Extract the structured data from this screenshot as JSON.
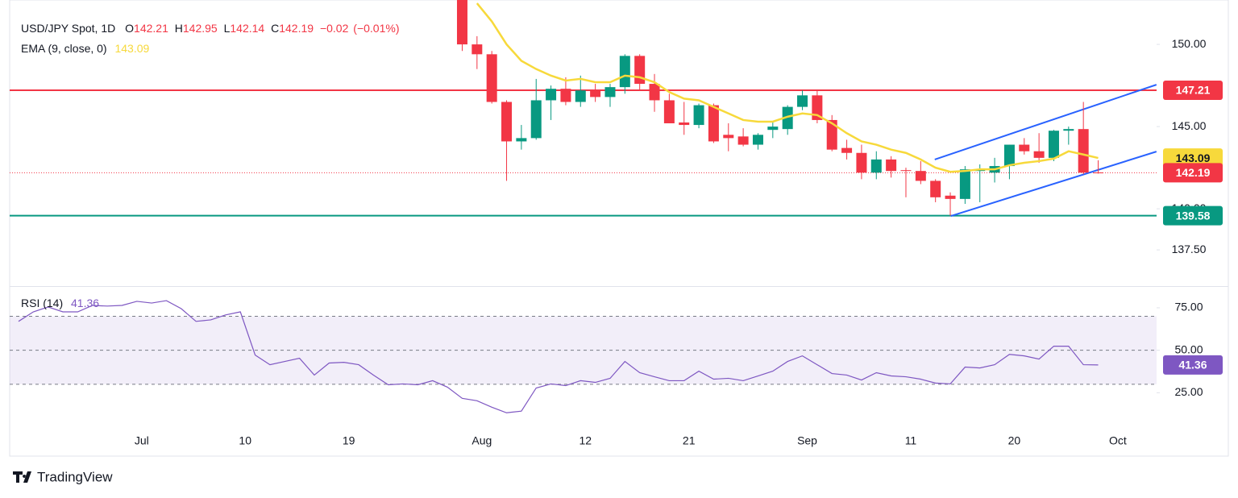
{
  "chart_data": {
    "type": "candlestick",
    "title": "USD/JPY Spot, 1D",
    "ohlc_keys": [
      "O",
      "H",
      "L",
      "C"
    ],
    "change": {
      "value": -0.02,
      "label": "−0.02"
    },
    "change_percent": {
      "value": -0.01,
      "label": "(−0.01%)"
    },
    "categories": [
      null,
      null,
      null,
      null,
      null,
      null,
      null,
      null,
      "Jul",
      null,
      null,
      null,
      null,
      null,
      null,
      "10",
      null,
      null,
      null,
      null,
      null,
      null,
      "19",
      null,
      null,
      null,
      null,
      null,
      null,
      null,
      null,
      "Aug",
      null,
      null,
      null,
      null,
      null,
      null,
      "12",
      null,
      null,
      null,
      null,
      null,
      null,
      "21",
      null,
      null,
      null,
      null,
      null,
      null,
      null,
      "Sep",
      null,
      null,
      null,
      null,
      null,
      null,
      "11",
      null,
      null,
      null,
      null,
      null,
      null,
      "20",
      null,
      null,
      null,
      null,
      null,
      null,
      "Oct"
    ],
    "open": [
      null,
      null,
      null,
      null,
      null,
      null,
      null,
      null,
      null,
      null,
      null,
      null,
      null,
      null,
      null,
      null,
      null,
      null,
      null,
      null,
      null,
      null,
      null,
      null,
      null,
      null,
      null,
      null,
      null,
      null,
      152.9,
      150.0,
      149.4,
      146.5,
      144.1,
      144.3,
      146.6,
      147.3,
      146.5,
      147.2,
      146.8,
      147.4,
      149.3,
      147.6,
      146.6,
      145.25,
      145.1,
      146.3,
      144.5,
      144.4,
      143.9,
      144.8,
      144.85,
      146.2,
      146.9,
      145.4,
      143.7,
      143.4,
      142.2,
      143.0,
      142.35,
      142.3,
      141.7,
      140.8,
      140.6,
      142.3,
      142.2,
      142.6,
      143.9,
      143.5,
      143.1,
      144.75,
      144.85,
      142.21,
      null
    ],
    "high": [
      null,
      null,
      null,
      null,
      null,
      null,
      null,
      null,
      null,
      null,
      null,
      null,
      null,
      null,
      null,
      null,
      null,
      null,
      null,
      null,
      null,
      null,
      null,
      null,
      null,
      null,
      null,
      null,
      null,
      null,
      153.1,
      150.5,
      149.6,
      146.6,
      145.1,
      147.9,
      147.5,
      148.0,
      148.1,
      147.6,
      147.6,
      149.4,
      149.4,
      148.2,
      147.0,
      146.5,
      146.4,
      146.4,
      145.2,
      144.9,
      144.6,
      145.3,
      146.3,
      147.2,
      147.2,
      145.7,
      144.2,
      143.9,
      143.5,
      143.2,
      142.5,
      142.9,
      141.8,
      141.0,
      142.6,
      142.7,
      143.1,
      143.9,
      144.3,
      144.6,
      144.8,
      145.0,
      146.5,
      142.95,
      null
    ],
    "low": [
      null,
      null,
      null,
      null,
      null,
      null,
      null,
      null,
      null,
      null,
      null,
      null,
      null,
      null,
      null,
      null,
      null,
      null,
      null,
      null,
      null,
      null,
      null,
      null,
      null,
      null,
      null,
      null,
      null,
      null,
      149.6,
      148.5,
      146.4,
      141.7,
      143.6,
      144.2,
      145.4,
      146.3,
      146.2,
      146.5,
      146.2,
      147.0,
      147.2,
      145.9,
      145.2,
      144.5,
      144.9,
      144.0,
      143.5,
      143.8,
      143.6,
      144.3,
      144.5,
      146.0,
      145.2,
      143.5,
      143.0,
      141.8,
      141.8,
      141.9,
      140.7,
      141.5,
      140.4,
      139.58,
      140.3,
      140.4,
      141.6,
      141.8,
      143.3,
      142.8,
      142.9,
      143.9,
      142.1,
      142.14,
      null
    ],
    "close": [
      null,
      null,
      null,
      null,
      null,
      null,
      null,
      null,
      null,
      null,
      null,
      null,
      null,
      null,
      null,
      null,
      null,
      null,
      null,
      null,
      null,
      null,
      null,
      null,
      null,
      null,
      null,
      null,
      null,
      null,
      150.0,
      149.4,
      146.5,
      144.1,
      144.3,
      146.6,
      147.3,
      146.5,
      147.2,
      146.8,
      147.4,
      149.3,
      147.6,
      146.6,
      145.2,
      145.1,
      146.3,
      144.1,
      144.3,
      143.9,
      144.5,
      145.0,
      146.2,
      146.9,
      145.4,
      143.6,
      143.4,
      142.2,
      143.0,
      142.3,
      142.3,
      141.7,
      140.7,
      140.6,
      142.4,
      142.4,
      142.6,
      143.9,
      143.5,
      143.1,
      144.75,
      144.85,
      142.2,
      142.19,
      null
    ],
    "up_color": "#089981",
    "down_color": "#f23645",
    "ylim": [
      135.3,
      152.7
    ],
    "yticks": [
      {
        "value": 137.5,
        "label": "137.50"
      },
      {
        "value": 140,
        "label": "140.00"
      },
      {
        "value": 145,
        "label": "145.00"
      },
      {
        "value": 150,
        "label": "150.00"
      }
    ],
    "series": [
      {
        "name": "EMA (9, close, 0)",
        "color": "#f7d93b",
        "values": [
          null,
          null,
          null,
          null,
          null,
          null,
          null,
          null,
          null,
          null,
          null,
          null,
          null,
          null,
          null,
          null,
          null,
          null,
          null,
          null,
          null,
          null,
          null,
          null,
          null,
          null,
          null,
          null,
          null,
          null,
          null,
          152.5,
          151.4,
          150.0,
          149.0,
          148.5,
          148.1,
          147.8,
          147.9,
          147.7,
          147.7,
          148.1,
          148.0,
          147.7,
          147.1,
          146.7,
          146.6,
          146.2,
          145.8,
          145.4,
          145.3,
          145.3,
          145.6,
          145.8,
          145.7,
          145.2,
          144.6,
          144.1,
          143.9,
          143.6,
          143.4,
          143.0,
          142.5,
          142.25,
          142.3,
          142.4,
          142.4,
          142.65,
          142.8,
          142.9,
          143.05,
          143.5,
          143.3,
          143.09,
          null
        ]
      }
    ],
    "hlines": [
      {
        "value": 147.21,
        "color": "#f23645"
      },
      {
        "value": 139.58,
        "color": "#089981"
      }
    ],
    "trendlines": [
      {
        "x": [
          61.95,
          76.94
        ],
        "values": [
          143.0,
          147.55
        ],
        "color": "#2962ff"
      },
      {
        "x": [
          63.04,
          76.94
        ],
        "values": [
          139.56,
          143.48
        ],
        "color": "#2962ff"
      }
    ],
    "rsi": {
      "name": "RSI (14)",
      "color": "#7e57c2",
      "values": [
        67,
        72.6,
        75.5,
        72.6,
        72.6,
        76.4,
        76,
        76.4,
        78.8,
        77.8,
        79.2,
        74.5,
        67,
        67.9,
        70.8,
        72.6,
        47.2,
        41.5,
        43.4,
        45.3,
        35.4,
        42.5,
        42.9,
        41.5,
        35.4,
        29.7,
        30.2,
        29.7,
        32.1,
        28.3,
        21.7,
        20.3,
        16.5,
        13.2,
        14.2,
        27.8,
        30.2,
        29.2,
        32.1,
        31.1,
        33.5,
        43.4,
        36.8,
        34.4,
        32.1,
        32.1,
        37.7,
        33,
        33.5,
        32.1,
        34.9,
        37.7,
        43.4,
        46.7,
        41.5,
        36.3,
        35.4,
        32.5,
        36.8,
        34.9,
        34.4,
        33,
        30.7,
        30.2,
        40.1,
        39.6,
        41.5,
        47.6,
        46.7,
        44.8,
        52.4,
        52.4,
        41.5,
        41.36,
        null
      ],
      "ylim": [
        -11.8,
        87.3
      ],
      "yticks": [
        {
          "value": 25,
          "label": "25.00"
        },
        {
          "value": 50,
          "label": "50.00"
        },
        {
          "value": 75,
          "label": "75.00"
        }
      ],
      "levels": [
        70,
        50,
        30
      ]
    }
  },
  "footer": {
    "brand": "TradingView"
  }
}
